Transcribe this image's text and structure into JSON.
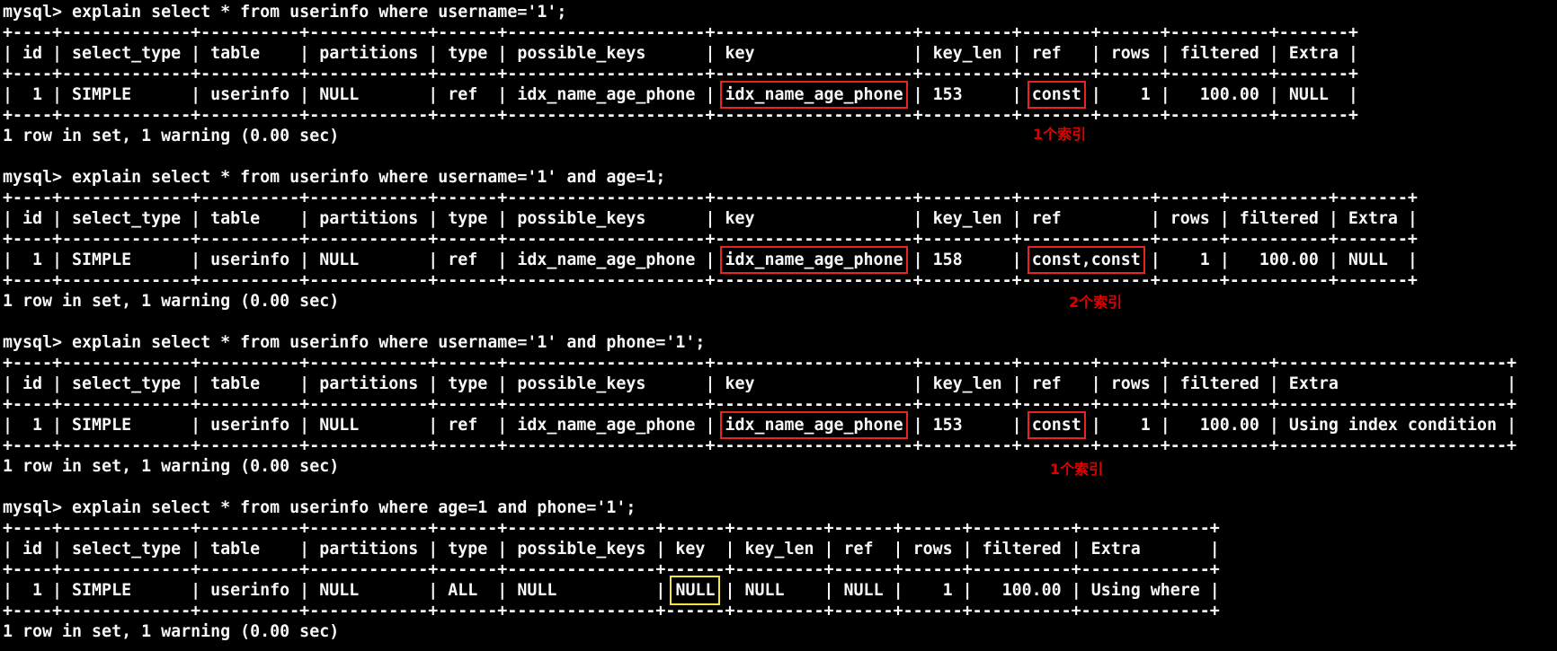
{
  "terminal": {
    "colors": {
      "background": "#000000",
      "foreground": "#f8f8f8",
      "highlight_red": "#e8241f",
      "highlight_yellow": "#f3e73a",
      "annotation_red": "#e00000"
    },
    "blocks": [
      {
        "command": "mysql> explain select * from userinfo where username='1';",
        "lines": [
          "+----+-------------+----------+------------+------+--------------------+--------------------+---------+-------+------+----------+-------+",
          "| id | select_type | table    | partitions | type | possible_keys      | key                | key_len | ref   | rows | filtered | Extra |",
          "+----+-------------+----------+------------+------+--------------------+--------------------+---------+-------+------+----------+-------+",
          {
            "segs": [
              {
                "t": "|  1 | SIMPLE      | userinfo | NULL       | ref  | idx_name_age_phone | "
              },
              {
                "t": "idx_name_age_phone",
                "h": "red"
              },
              {
                "t": " | 153     | "
              },
              {
                "t": "const",
                "h": "red"
              },
              {
                "t": " |    1 |   100.00 | NULL  |"
              }
            ]
          },
          "+----+-------------+----------+------------+------+--------------------+--------------------+---------+-------+------+----------+-------+"
        ],
        "result": "1 row in set, 1 warning (0.00 sec)"
      },
      {
        "command": "mysql> explain select * from userinfo where username='1' and age=1;",
        "lines": [
          "+----+-------------+----------+------------+------+--------------------+--------------------+---------+-------------+------+----------+-------+",
          "| id | select_type | table    | partitions | type | possible_keys      | key                | key_len | ref         | rows | filtered | Extra |",
          "+----+-------------+----------+------------+------+--------------------+--------------------+---------+-------------+------+----------+-------+",
          {
            "segs": [
              {
                "t": "|  1 | SIMPLE      | userinfo | NULL       | ref  | idx_name_age_phone | "
              },
              {
                "t": "idx_name_age_phone",
                "h": "red"
              },
              {
                "t": " | 158     | "
              },
              {
                "t": "const,const",
                "h": "red"
              },
              {
                "t": " |    1 |   100.00 | NULL  |"
              }
            ]
          },
          "+----+-------------+----------+------------+------+--------------------+--------------------+---------+-------------+------+----------+-------+"
        ],
        "result": "1 row in set, 1 warning (0.00 sec)"
      },
      {
        "command": "mysql> explain select * from userinfo where username='1' and phone='1';",
        "lines": [
          "+----+-------------+----------+------------+------+--------------------+--------------------+---------+-------+------+----------+-----------------------+",
          "| id | select_type | table    | partitions | type | possible_keys      | key                | key_len | ref   | rows | filtered | Extra                 |",
          "+----+-------------+----------+------------+------+--------------------+--------------------+---------+-------+------+----------+-----------------------+",
          {
            "segs": [
              {
                "t": "|  1 | SIMPLE      | userinfo | NULL       | ref  | idx_name_age_phone | "
              },
              {
                "t": "idx_name_age_phone",
                "h": "red"
              },
              {
                "t": " | 153     | "
              },
              {
                "t": "const",
                "h": "red"
              },
              {
                "t": " |    1 |   100.00 | Using index condition |"
              }
            ]
          },
          "+----+-------------+----------+------------+------+--------------------+--------------------+---------+-------+------+----------+-----------------------+"
        ],
        "result": "1 row in set, 1 warning (0.00 sec)"
      },
      {
        "command": "mysql> explain select * from userinfo where age=1 and phone='1';",
        "lines": [
          "+----+-------------+----------+------------+------+---------------+------+---------+------+------+----------+-------------+",
          "| id | select_type | table    | partitions | type | possible_keys | key  | key_len | ref  | rows | filtered | Extra       |",
          "+----+-------------+----------+------------+------+---------------+------+---------+------+------+----------+-------------+",
          {
            "segs": [
              {
                "t": "|  1 | SIMPLE      | userinfo | NULL       | ALL  | NULL          | "
              },
              {
                "t": "NULL",
                "h": "yellow"
              },
              {
                "t": " | NULL    | NULL |    1 |   100.00 | Using where |"
              }
            ]
          },
          "+----+-------------+----------+------------+------+---------------+------+---------+------+------+----------+-------------+"
        ],
        "result": "1 row in set, 1 warning (0.00 sec)"
      }
    ],
    "annotations": [
      {
        "text": "1个索引"
      },
      {
        "text": "2个索引"
      },
      {
        "text": "1个索引"
      }
    ]
  }
}
